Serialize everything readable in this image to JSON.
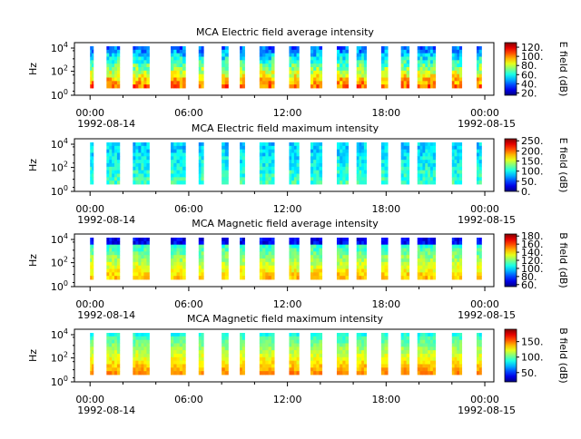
{
  "chart_data": [
    {
      "type": "heatmap",
      "title": "MCA  Electric field average intensity",
      "ylabel": "Hz",
      "yscale": "log",
      "yticks": [
        "10^0",
        "10^2",
        "10^4"
      ],
      "xticks": [
        "00:00",
        "06:00",
        "12:00",
        "18:00",
        "00:00"
      ],
      "xdates": [
        "1992-08-14",
        "1992-08-15"
      ],
      "colorbar": {
        "label": "E field (dB)",
        "ticks": [
          "20.",
          "40.",
          "60.",
          "80.",
          "100.",
          "120."
        ],
        "range": [
          15,
          130
        ]
      },
      "time_blocks_hours": [
        [
          0.0,
          0.2
        ],
        [
          1.0,
          1.8
        ],
        [
          2.6,
          3.6
        ],
        [
          4.9,
          5.8
        ],
        [
          6.6,
          6.9
        ],
        [
          8.0,
          8.4
        ],
        [
          9.1,
          9.4
        ],
        [
          10.3,
          11.2
        ],
        [
          12.1,
          12.7
        ],
        [
          13.4,
          14.1
        ],
        [
          15.0,
          15.7
        ],
        [
          16.2,
          16.8
        ],
        [
          17.7,
          18.1
        ],
        [
          18.9,
          19.4
        ],
        [
          19.9,
          21.0
        ],
        [
          22.0,
          22.6
        ],
        [
          23.5,
          23.8
        ]
      ]
    },
    {
      "type": "heatmap",
      "title": "MCA  Electric field maximum intensity",
      "ylabel": "Hz",
      "yscale": "log",
      "yticks": [
        "10^0",
        "10^2",
        "10^4"
      ],
      "xticks": [
        "00:00",
        "06:00",
        "12:00",
        "18:00",
        "00:00"
      ],
      "xdates": [
        "1992-08-14",
        "1992-08-15"
      ],
      "colorbar": {
        "label": "E field (dB)",
        "ticks": [
          "0.",
          "50.",
          "100.",
          "150.",
          "200.",
          "250."
        ],
        "range": [
          0,
          260
        ]
      }
    },
    {
      "type": "heatmap",
      "title": "MCA  Magnetic field average intensity",
      "ylabel": "Hz",
      "yscale": "log",
      "yticks": [
        "10^0",
        "10^2",
        "10^4"
      ],
      "xticks": [
        "00:00",
        "06:00",
        "12:00",
        "18:00",
        "00:00"
      ],
      "xdates": [
        "1992-08-14",
        "1992-08-15"
      ],
      "colorbar": {
        "label": "B field (dB)",
        "ticks": [
          "60.",
          "80.",
          "100.",
          "120.",
          "140.",
          "160.",
          "180."
        ],
        "range": [
          55,
          185
        ]
      }
    },
    {
      "type": "heatmap",
      "title": "MCA  Magnetic field maximum intensity",
      "ylabel": "Hz",
      "yscale": "log",
      "yticks": [
        "10^0",
        "10^2",
        "10^4"
      ],
      "xticks": [
        "00:00",
        "06:00",
        "12:00",
        "18:00",
        "00:00"
      ],
      "xdates": [
        "1992-08-14",
        "1992-08-15"
      ],
      "colorbar": {
        "label": "B field (dB)",
        "ticks": [
          "50.",
          "100.",
          "150."
        ],
        "range": [
          20,
          190
        ]
      }
    }
  ]
}
